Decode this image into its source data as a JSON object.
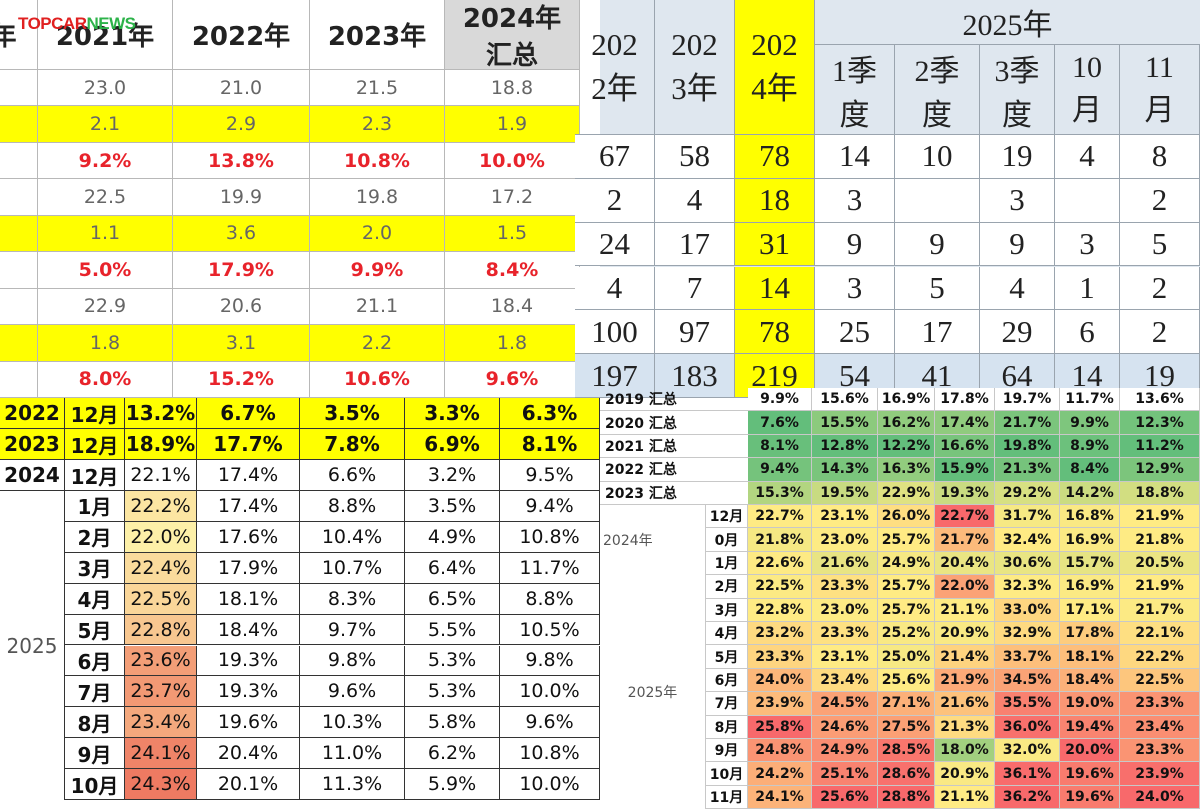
{
  "logo": [
    "TOPCAR",
    "NEWS"
  ],
  "table_a": {
    "header": [
      "年",
      "2021年",
      "2022年",
      "2023年",
      "2024年\n汇总"
    ],
    "rows": [
      [
        "23.0",
        "21.0",
        "21.5",
        "18.8"
      ],
      [
        "2.1",
        "2.9",
        "2.3",
        "1.9"
      ],
      [
        "9.2%",
        "13.8%",
        "10.8%",
        "10.0%"
      ],
      [
        "22.5",
        "19.9",
        "19.8",
        "17.2"
      ],
      [
        "1.1",
        "3.6",
        "2.0",
        "1.5"
      ],
      [
        "5.0%",
        "17.9%",
        "9.9%",
        "8.4%"
      ],
      [
        "22.9",
        "20.6",
        "21.1",
        "18.4"
      ],
      [
        "1.8",
        "3.1",
        "2.2",
        "1.8"
      ],
      [
        "8.0%",
        "15.2%",
        "10.6%",
        "9.6%"
      ]
    ]
  },
  "table_b": {
    "years": [
      "2022年",
      "2023年",
      "2024年"
    ],
    "group": "2025年",
    "sub": [
      "1季度",
      "2季度",
      "3季度",
      "10月",
      "11月"
    ],
    "rows": [
      [
        "67",
        "58",
        "78",
        "14",
        "10",
        "19",
        "4",
        "8"
      ],
      [
        "2",
        "4",
        "18",
        "3",
        null,
        "3",
        null,
        "2"
      ],
      [
        "24",
        "17",
        "31",
        "9",
        "9",
        "9",
        "3",
        "5"
      ],
      [
        "4",
        "7",
        "14",
        "3",
        "5",
        "4",
        "1",
        "2"
      ],
      [
        "100",
        "97",
        "78",
        "25",
        "17",
        "29",
        "6",
        "2"
      ],
      [
        "197",
        "183",
        "219",
        "54",
        "41",
        "64",
        "14",
        "19"
      ]
    ]
  },
  "table_c": {
    "rows": [
      {
        "year": "2022",
        "month": "12月",
        "values": [
          "13.2%",
          "6.7%",
          "3.5%",
          "3.3%",
          "6.3%"
        ]
      },
      {
        "year": "2023",
        "month": "12月",
        "values": [
          "18.9%",
          "17.7%",
          "7.8%",
          "6.9%",
          "8.1%"
        ]
      },
      {
        "year": "2024",
        "month": "12月",
        "values": [
          "22.1%",
          "17.4%",
          "6.6%",
          "3.2%",
          "9.5%"
        ]
      }
    ],
    "group": {
      "year": "2025",
      "rows": [
        {
          "month": "1月",
          "values": [
            "22.2%",
            "17.4%",
            "8.8%",
            "3.5%",
            "9.4%"
          ]
        },
        {
          "month": "2月",
          "values": [
            "22.0%",
            "17.6%",
            "10.4%",
            "4.9%",
            "10.8%"
          ]
        },
        {
          "month": "3月",
          "values": [
            "22.4%",
            "17.9%",
            "10.7%",
            "6.4%",
            "11.7%"
          ]
        },
        {
          "month": "4月",
          "values": [
            "22.5%",
            "18.1%",
            "8.3%",
            "6.5%",
            "8.8%"
          ]
        },
        {
          "month": "5月",
          "values": [
            "22.8%",
            "18.4%",
            "9.7%",
            "5.5%",
            "10.5%"
          ]
        },
        {
          "month": "6月",
          "values": [
            "23.6%",
            "19.3%",
            "9.8%",
            "5.3%",
            "9.8%"
          ]
        },
        {
          "month": "7月",
          "values": [
            "23.7%",
            "19.3%",
            "9.6%",
            "5.3%",
            "10.0%"
          ]
        },
        {
          "month": "8月",
          "values": [
            "23.4%",
            "19.6%",
            "10.3%",
            "5.8%",
            "9.6%"
          ]
        },
        {
          "month": "9月",
          "values": [
            "24.1%",
            "20.4%",
            "11.0%",
            "6.2%",
            "10.8%"
          ]
        },
        {
          "month": "10月",
          "values": [
            "24.3%",
            "20.1%",
            "11.3%",
            "5.9%",
            "10.0%"
          ]
        }
      ]
    }
  },
  "table_d": {
    "summary": [
      {
        "label": "2019 汇总",
        "values": [
          "9.9%",
          "15.6%",
          "16.9%",
          "17.8%",
          "19.7%",
          "11.7%",
          "13.6%"
        ]
      },
      {
        "label": "2020 汇总",
        "values": [
          "7.6%",
          "15.5%",
          "16.2%",
          "17.4%",
          "21.7%",
          "9.9%",
          "12.3%"
        ]
      },
      {
        "label": "2021 汇总",
        "values": [
          "8.1%",
          "12.8%",
          "12.2%",
          "16.6%",
          "19.8%",
          "8.9%",
          "11.2%"
        ]
      },
      {
        "label": "2022 汇总",
        "values": [
          "9.4%",
          "14.3%",
          "16.3%",
          "15.9%",
          "21.3%",
          "8.4%",
          "12.9%"
        ]
      },
      {
        "label": "2023 汇总",
        "values": [
          "15.3%",
          "19.5%",
          "22.9%",
          "19.3%",
          "29.2%",
          "14.2%",
          "18.8%"
        ]
      }
    ],
    "months": [
      {
        "month": "12月",
        "values": [
          "22.7%",
          "23.1%",
          "26.0%",
          "22.7%",
          "31.7%",
          "16.8%",
          "21.9%"
        ]
      },
      {
        "label": "2024年",
        "month": "0月",
        "values": [
          "21.8%",
          "23.0%",
          "25.7%",
          "21.7%",
          "32.4%",
          "16.9%",
          "21.8%"
        ]
      },
      {
        "month": "1月",
        "values": [
          "22.6%",
          "21.6%",
          "24.9%",
          "20.4%",
          "30.6%",
          "15.7%",
          "20.5%"
        ]
      },
      {
        "month": "2月",
        "values": [
          "22.5%",
          "23.3%",
          "25.7%",
          "22.0%",
          "32.3%",
          "16.9%",
          "21.9%"
        ]
      },
      {
        "month": "3月",
        "values": [
          "22.8%",
          "23.0%",
          "25.7%",
          "21.1%",
          "33.0%",
          "17.1%",
          "21.7%"
        ]
      },
      {
        "month": "4月",
        "values": [
          "23.2%",
          "23.3%",
          "25.2%",
          "20.9%",
          "32.9%",
          "17.8%",
          "22.1%"
        ]
      },
      {
        "month": "5月",
        "values": [
          "23.3%",
          "23.1%",
          "25.0%",
          "21.4%",
          "33.7%",
          "18.1%",
          "22.2%"
        ]
      },
      {
        "month": "6月",
        "values": [
          "24.0%",
          "23.4%",
          "25.6%",
          "21.9%",
          "34.5%",
          "18.4%",
          "22.5%"
        ]
      },
      {
        "month": "7月",
        "values": [
          "23.9%",
          "24.5%",
          "27.1%",
          "21.6%",
          "35.5%",
          "19.0%",
          "23.3%"
        ]
      },
      {
        "month": "8月",
        "values": [
          "25.8%",
          "24.6%",
          "27.5%",
          "21.3%",
          "36.0%",
          "19.4%",
          "23.4%"
        ]
      },
      {
        "month": "9月",
        "values": [
          "24.8%",
          "24.9%",
          "28.5%",
          "18.0%",
          "32.0%",
          "20.0%",
          "23.3%"
        ]
      },
      {
        "month": "10月",
        "values": [
          "24.2%",
          "25.1%",
          "28.6%",
          "20.9%",
          "36.1%",
          "19.6%",
          "23.9%"
        ]
      },
      {
        "month": "11月",
        "values": [
          "24.1%",
          "25.6%",
          "28.8%",
          "21.1%",
          "36.2%",
          "19.6%",
          "24.0%"
        ]
      }
    ],
    "group": "2025年"
  }
}
